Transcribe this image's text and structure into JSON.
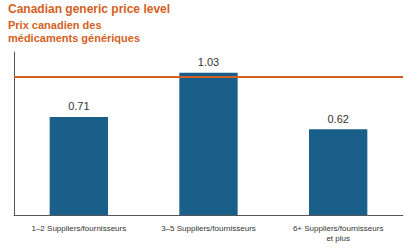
{
  "chart_data": {
    "type": "bar",
    "categories": [
      "1–2 Suppliers/fournisseurs",
      "3–5 Suppliers/fournisseurs",
      "6+ Suppliers/fournisseurs\net plus"
    ],
    "values": [
      0.71,
      1.03,
      0.62
    ],
    "color": "#1a5f8a",
    "ylim": [
      0,
      1.18
    ],
    "grid": false,
    "tick_labels": "x",
    "data_labels": true,
    "reference_line": {
      "y": 1.0,
      "color": "#d45f1e"
    },
    "annotations": [
      "Canadian generic price level",
      "Prix canadien des\nmédicaments génériques"
    ]
  }
}
